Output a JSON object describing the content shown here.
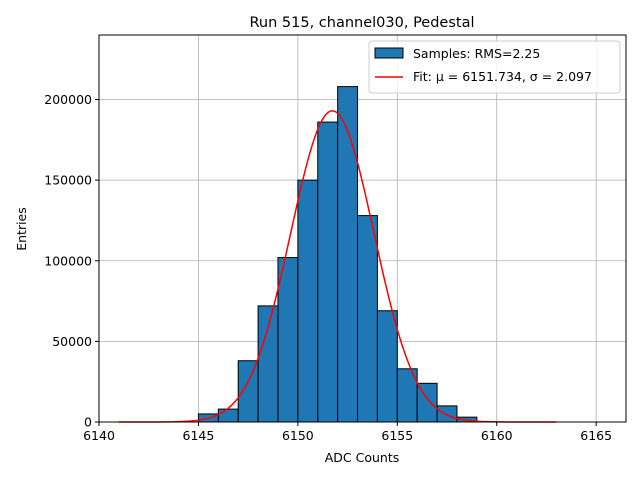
{
  "chart_data": {
    "type": "bar",
    "title": "Run 515, channel030, Pedestal",
    "xlabel": "ADC Counts",
    "ylabel": "Entries",
    "xlim": [
      6140,
      6166.5
    ],
    "ylim": [
      0,
      240000
    ],
    "xticks": [
      "6140",
      "6145",
      "6150",
      "6155",
      "6160",
      "6165"
    ],
    "yticks": [
      "0",
      "50000",
      "100000",
      "150000",
      "200000"
    ],
    "grid": true,
    "legend_position": "top-right",
    "colors": {
      "bars": "#1f77b4",
      "bar_edge": "#000000",
      "fit": "#ff0000"
    },
    "series": [
      {
        "name": "Samples: RMS=2.25",
        "kind": "histogram",
        "bin_edges": [
          6145,
          6146,
          6147,
          6148,
          6149,
          6150,
          6151,
          6152,
          6153,
          6154,
          6155,
          6156,
          6157,
          6158,
          6159
        ],
        "values": [
          5000,
          8000,
          38000,
          72000,
          102000,
          150000,
          186000,
          208000,
          128000,
          69000,
          33000,
          24000,
          10000,
          3000
        ]
      },
      {
        "name": "Fit: μ = 6151.734, σ = 2.097",
        "kind": "line",
        "function": "gaussian",
        "mu": 6151.734,
        "sigma": 2.097,
        "amplitude": 193000,
        "x_range": [
          6141,
          6163
        ]
      }
    ]
  }
}
